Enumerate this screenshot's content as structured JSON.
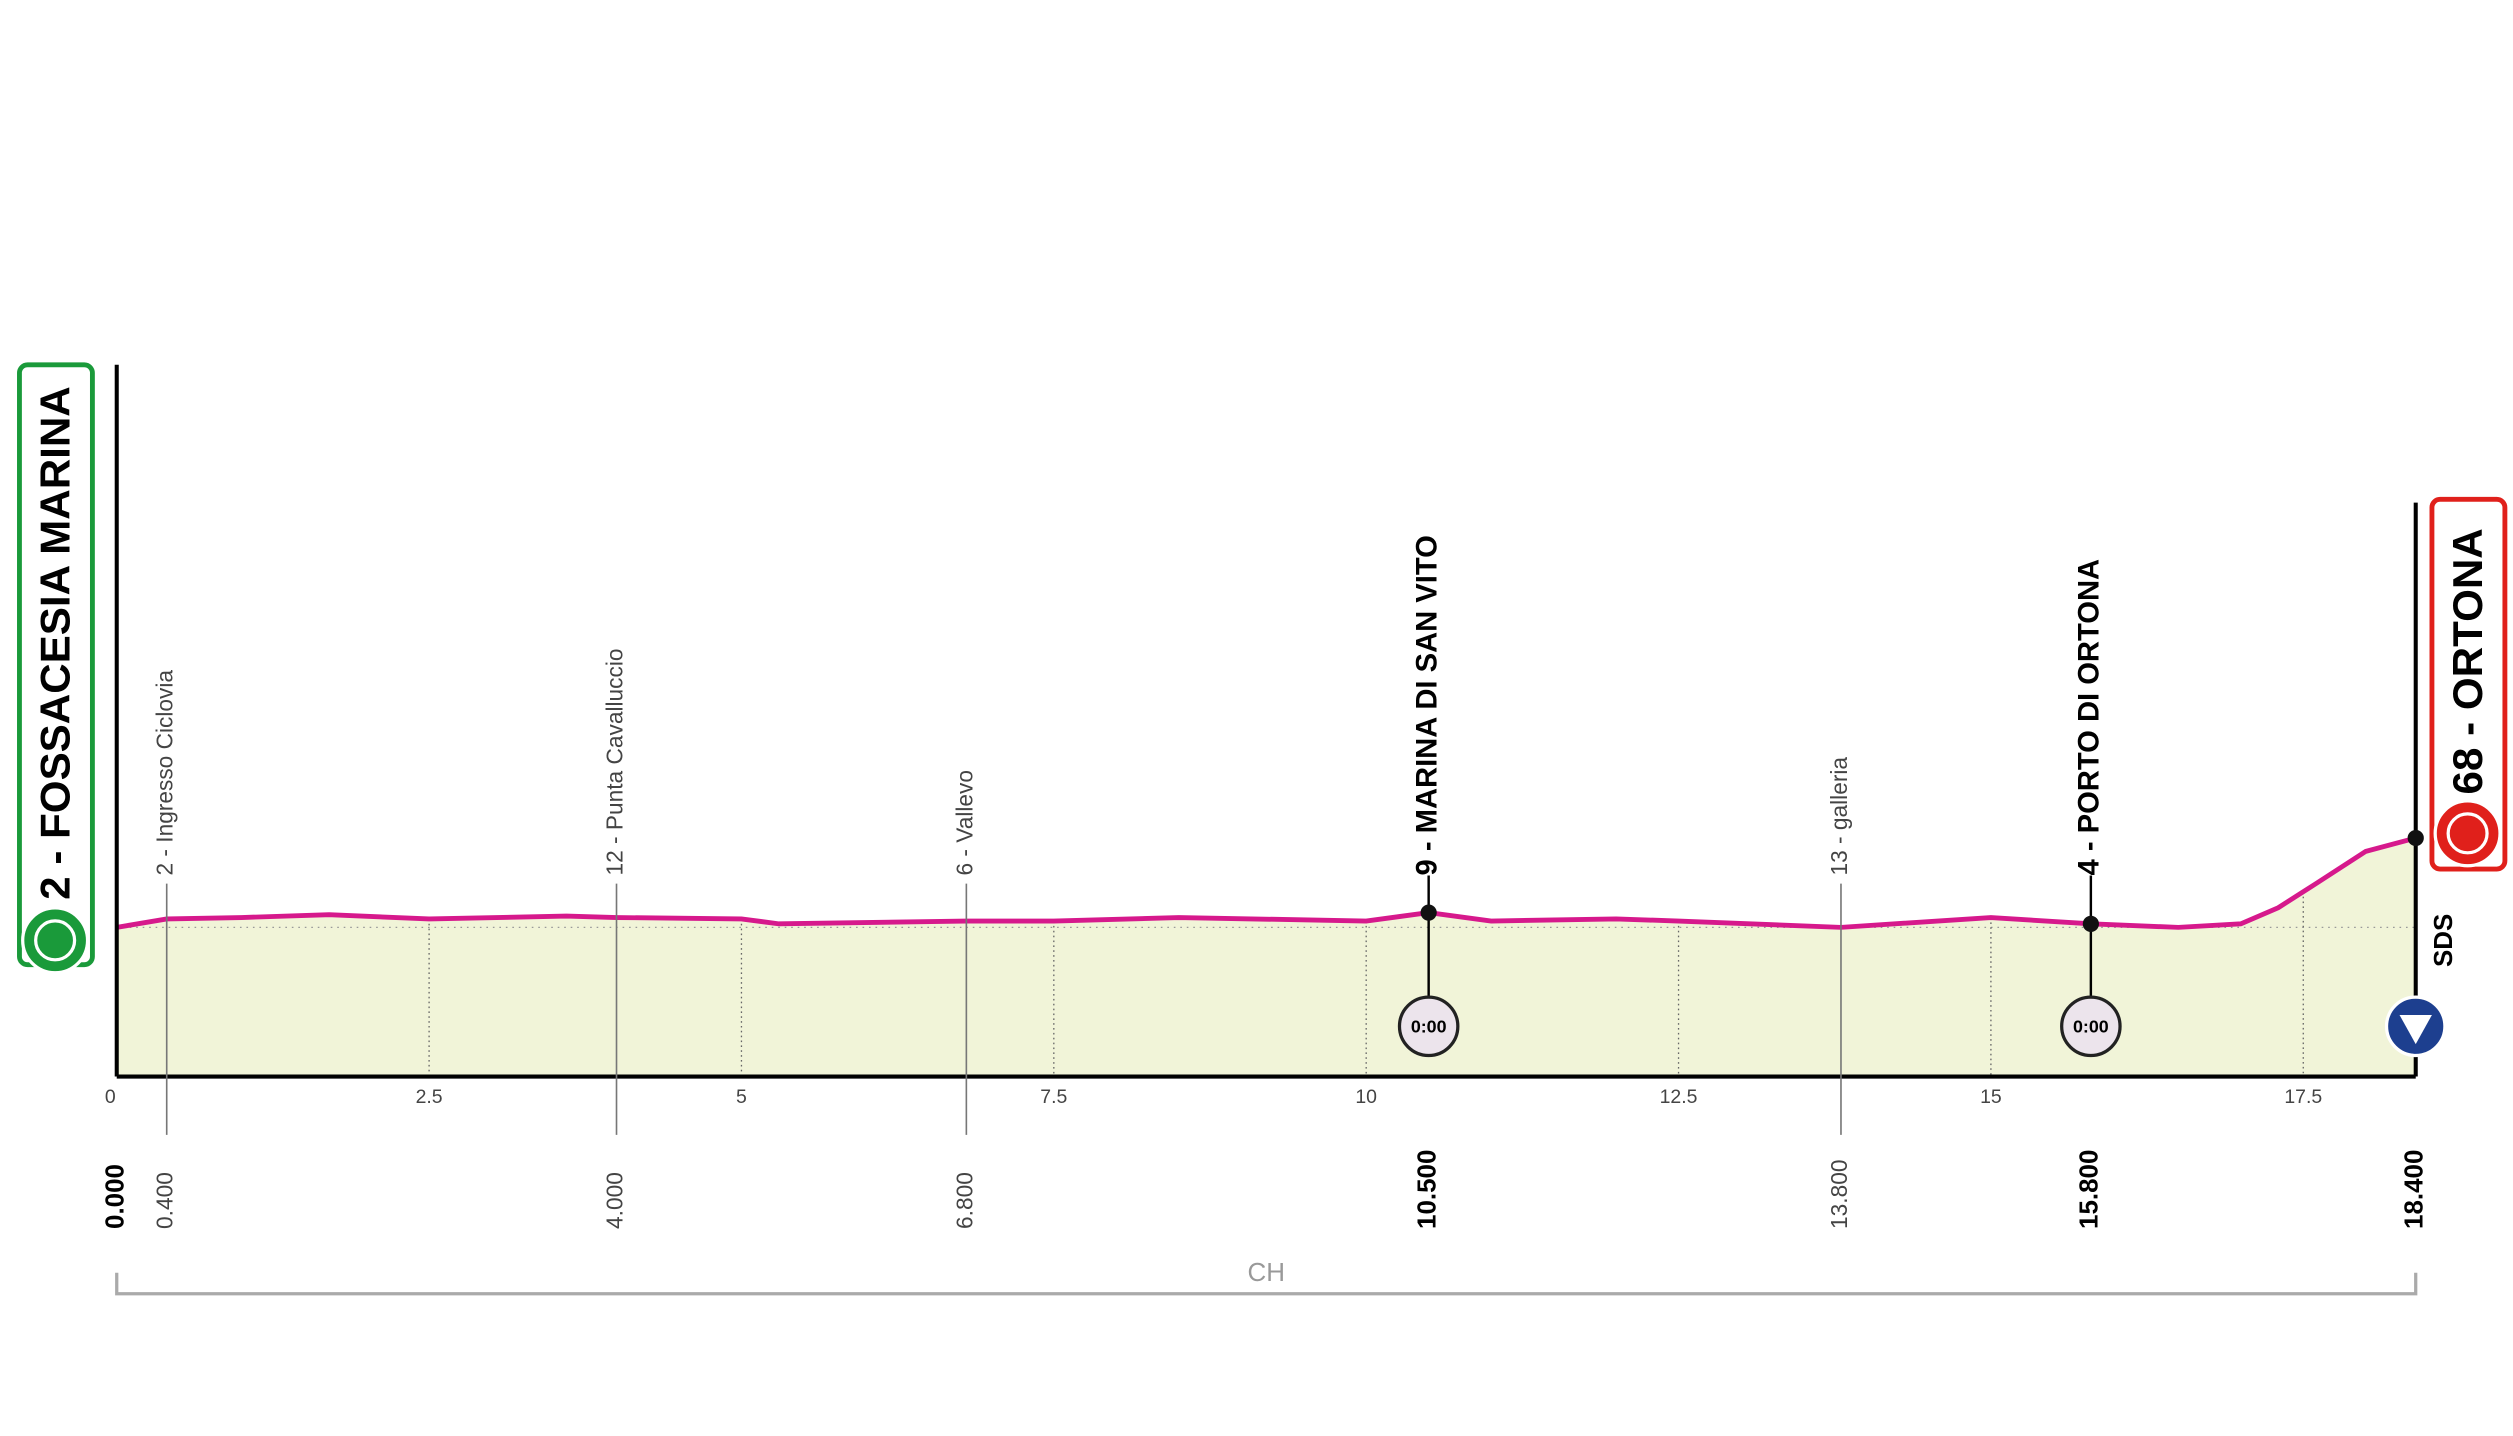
{
  "chart_data": {
    "type": "area",
    "x": [
      0,
      0.4,
      1,
      1.7,
      2.5,
      3.6,
      4,
      5,
      5.3,
      6.8,
      7.5,
      8.5,
      10,
      10.5,
      11,
      12,
      12.5,
      13.8,
      15,
      15.8,
      16.5,
      17,
      17.3,
      17.6,
      18,
      18.4
    ],
    "values": [
      21.2,
      22.4,
      22.6,
      23.0,
      22.4,
      22.8,
      22.6,
      22.4,
      21.7,
      22.1,
      22.1,
      22.6,
      22.1,
      23.3,
      22.1,
      22.4,
      22.1,
      21.2,
      22.6,
      21.7,
      21.2,
      21.7,
      24.0,
      27.4,
      32.0,
      33.9
    ],
    "color": "#d6198c",
    "fill": "#f1f4d8",
    "xlim": [
      0,
      18.4
    ],
    "ylim": [
      0,
      100
    ],
    "xticks": [
      0,
      2.5,
      5,
      7.5,
      10,
      12.5,
      15,
      17.5
    ],
    "grid": true,
    "start": {
      "km": {
        "value": 0,
        "label": "0.000"
      },
      "name": "2 - FOSSACESIA MARINA",
      "color": "#1a9a3a"
    },
    "finish": {
      "km": {
        "value": 18.4,
        "label": "18.400"
      },
      "name": "68 - ORTONA",
      "color": "#e0201b"
    },
    "waypoints": [
      {
        "km": {
          "value": 0.4,
          "label": "0.400"
        },
        "name": "2 - Ingresso Ciclovia",
        "major": false
      },
      {
        "km": {
          "value": 4,
          "label": "4.000"
        },
        "name": "12 - Punta Cavalluccio",
        "major": false
      },
      {
        "km": {
          "value": 6.8,
          "label": "6.800"
        },
        "name": "6 - Vallevo",
        "major": false
      },
      {
        "km": {
          "value": 10.5,
          "label": "10.500"
        },
        "name": "9 - MARINA DI SAN VITO",
        "major": true,
        "timing": "0:00"
      },
      {
        "km": {
          "value": 13.8,
          "label": "13.800"
        },
        "name": "13 - galleria",
        "major": false
      },
      {
        "km": {
          "value": 15.8,
          "label": "15.800"
        },
        "name": "4 - PORTO DI ORTONA",
        "major": true,
        "timing": "0:00"
      }
    ],
    "province": "CH",
    "brand": "SDS"
  }
}
